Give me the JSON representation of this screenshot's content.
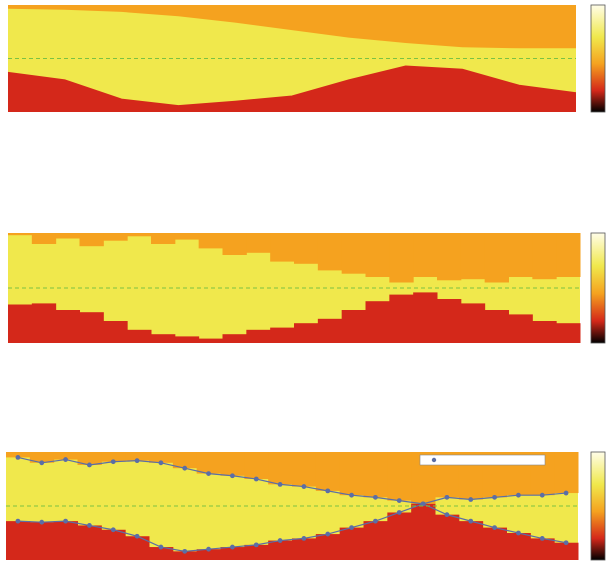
{
  "chart_data": [
    {
      "type": "area",
      "x": [
        0,
        1,
        2,
        3,
        4,
        5,
        6,
        7,
        8,
        9,
        10
      ],
      "xlim": [
        0,
        10
      ],
      "ylim": [
        0,
        1
      ],
      "hline": 0.5,
      "series": [
        {
          "color": "#f5a21f",
          "values": [
            0.97,
            0.96,
            0.94,
            0.9,
            0.84,
            0.77,
            0.7,
            0.65,
            0.61,
            0.6,
            0.6
          ]
        },
        {
          "color": "#d4281a",
          "values": [
            0.37,
            0.3,
            0.12,
            0.06,
            0.1,
            0.15,
            0.3,
            0.43,
            0.4,
            0.25,
            0.18
          ]
        }
      ],
      "fill_color": "#f0e84c",
      "line_color": "#7cc242"
    },
    {
      "type": "bar",
      "x": [
        0,
        1,
        2,
        3,
        4,
        5,
        6,
        7,
        8,
        9,
        10,
        11,
        12,
        13,
        14,
        15,
        16,
        17,
        18,
        19,
        20,
        21,
        22,
        23
      ],
      "xlim": [
        0,
        23
      ],
      "ylim": [
        0,
        1
      ],
      "hline": 0.5,
      "series": [
        {
          "color": "#f5a21f",
          "values": [
            0.98,
            0.9,
            0.95,
            0.88,
            0.93,
            0.97,
            0.9,
            0.94,
            0.86,
            0.8,
            0.82,
            0.74,
            0.72,
            0.66,
            0.63,
            0.6,
            0.55,
            0.6,
            0.57,
            0.58,
            0.55,
            0.6,
            0.58,
            0.6
          ]
        },
        {
          "color": "#d4281a",
          "values": [
            0.35,
            0.36,
            0.3,
            0.28,
            0.2,
            0.12,
            0.08,
            0.06,
            0.04,
            0.08,
            0.12,
            0.14,
            0.18,
            0.22,
            0.3,
            0.38,
            0.44,
            0.46,
            0.4,
            0.36,
            0.3,
            0.26,
            0.2,
            0.18
          ]
        }
      ],
      "fill_color": "#f0e84c",
      "line_color": "#7cc242"
    },
    {
      "type": "bar",
      "x": [
        0,
        1,
        2,
        3,
        4,
        5,
        6,
        7,
        8,
        9,
        10,
        11,
        12,
        13,
        14,
        15,
        16,
        17,
        18,
        19,
        20,
        21,
        22,
        23
      ],
      "xlim": [
        0,
        23
      ],
      "ylim": [
        0,
        1
      ],
      "hline": 0.5,
      "markers": true,
      "marker_color": "#5b6ea6",
      "series": [
        {
          "color": "#f5a21f",
          "values": [
            0.95,
            0.9,
            0.93,
            0.88,
            0.91,
            0.92,
            0.9,
            0.85,
            0.8,
            0.78,
            0.75,
            0.7,
            0.68,
            0.64,
            0.6,
            0.58,
            0.55,
            0.52,
            0.58,
            0.56,
            0.58,
            0.6,
            0.6,
            0.62
          ]
        },
        {
          "color": "#d4281a",
          "values": [
            0.36,
            0.35,
            0.36,
            0.32,
            0.28,
            0.22,
            0.12,
            0.08,
            0.1,
            0.12,
            0.14,
            0.18,
            0.2,
            0.24,
            0.3,
            0.36,
            0.44,
            0.52,
            0.42,
            0.36,
            0.3,
            0.25,
            0.2,
            0.16
          ]
        }
      ],
      "fill_color": "#f0e84c",
      "line_color": "#7cc242"
    }
  ]
}
